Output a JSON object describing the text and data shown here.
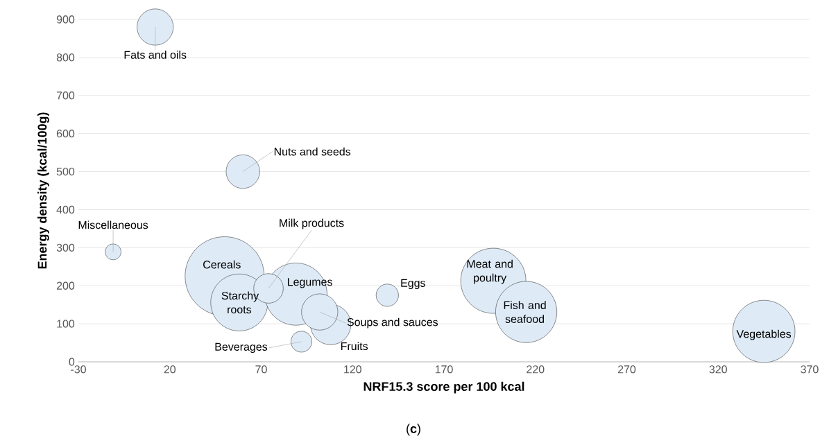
{
  "chart_data": {
    "type": "bubble",
    "xlabel": "NRF15.3 score per 100 kcal",
    "ylabel": "Energy density (kcal/100g)",
    "x": [
      12,
      60,
      -11,
      50,
      58,
      89,
      74,
      108,
      102,
      92,
      139,
      197,
      215,
      345
    ],
    "series": [
      {
        "color": "#deebf7",
        "values": [
          880,
          500,
          289,
          225,
          156,
          178,
          193,
          98,
          131,
          53,
          175,
          213,
          131,
          80
        ],
        "sizes": [
          0.21,
          0.18,
          0.04,
          1,
          0.52,
          0.62,
          0.14,
          0.26,
          0.21,
          0.07,
          0.08,
          0.68,
          0.6,
          0.62
        ]
      }
    ],
    "xlim": [
      -30,
      370
    ],
    "xticks": [
      -30,
      20,
      70,
      120,
      170,
      220,
      270,
      320,
      370
    ],
    "ylim": [
      0,
      900
    ],
    "yticks": [
      0,
      100,
      200,
      300,
      400,
      500,
      600,
      700,
      800,
      900
    ],
    "grid": "y",
    "annotations": [
      {
        "text": "Fats and oils",
        "x": 12,
        "y": 880
      },
      {
        "text": "Nuts and seeds",
        "x": 60,
        "y": 500
      },
      {
        "text": "Miscellaneous",
        "x": -11,
        "y": 289
      },
      {
        "text": "Cereals",
        "x": 50,
        "y": 225
      },
      {
        "text": "Starchy roots",
        "x": 58,
        "y": 156
      },
      {
        "text": "Legumes",
        "x": 89,
        "y": 178
      },
      {
        "text": "Milk products",
        "x": 74,
        "y": 193
      },
      {
        "text": "Fruits",
        "x": 108,
        "y": 98
      },
      {
        "text": "Soups and sauces",
        "x": 102,
        "y": 131
      },
      {
        "text": "Beverages",
        "x": 92,
        "y": 53
      },
      {
        "text": "Eggs",
        "x": 139,
        "y": 175
      },
      {
        "text": "Meat and poultry",
        "x": 197,
        "y": 213
      },
      {
        "text": "Fish and seafood",
        "x": 215,
        "y": 131
      },
      {
        "text": "Vegetables",
        "x": 345,
        "y": 80
      },
      "(**c**)"
    ]
  }
}
